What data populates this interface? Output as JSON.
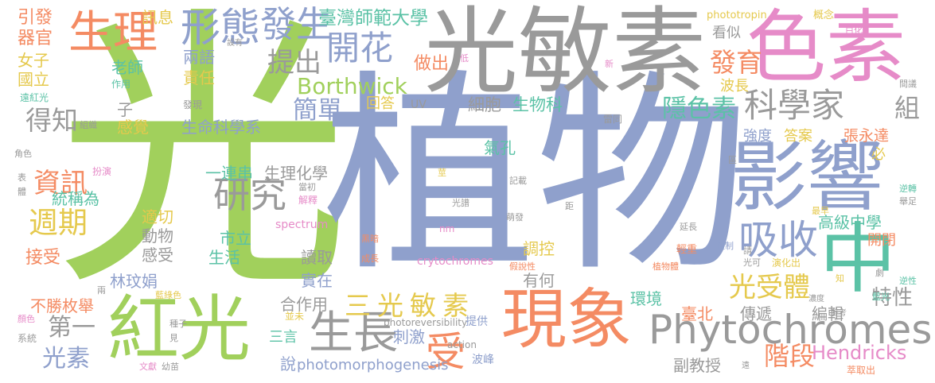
{
  "words": {
    "w000": {
      "text": "光",
      "color": "#a1d05c"
    },
    "w001": {
      "text": "植物",
      "color": "#8fa0cc"
    },
    "w002": {
      "text": "光敏素",
      "color": "#9a9a9a"
    },
    "w003": {
      "text": "色素",
      "color": "#e68bc8"
    },
    "w004": {
      "text": "影響",
      "color": "#8fa0cc"
    },
    "w005": {
      "text": "現象",
      "color": "#f48b63"
    },
    "w006": {
      "text": "紅光",
      "color": "#a1d05c"
    },
    "w007": {
      "text": "中",
      "color": "#5bc2a6"
    },
    "w008": {
      "text": "Phytochromes",
      "color": "#9a9a9a"
    },
    "w009": {
      "text": "生理",
      "color": "#f48b63"
    },
    "w010": {
      "text": "形態",
      "color": "#8fa0cc"
    },
    "w011": {
      "text": "發生",
      "color": "#8fa0cc"
    },
    "w012": {
      "text": "開花",
      "color": "#8fa0cc"
    },
    "w013": {
      "text": "科學家",
      "color": "#9a9a9a"
    },
    "w014": {
      "text": "組",
      "color": "#9a9a9a"
    },
    "w015": {
      "text": "吸收",
      "color": "#8fa0cc"
    },
    "w016": {
      "text": "研究",
      "color": "#9a9a9a"
    },
    "w017": {
      "text": "生長",
      "color": "#9a9a9a"
    },
    "w018": {
      "text": "受",
      "color": "#f48b63"
    },
    "w019": {
      "text": "Borthwick",
      "color": "#a1d05c"
    },
    "w020": {
      "text": "臺灣師範大學",
      "color": "#5bc2a6"
    },
    "w021": {
      "text": "提出",
      "color": "#9a9a9a"
    },
    "w022": {
      "text": "發育",
      "color": "#f48b63"
    },
    "w023": {
      "text": "簡單",
      "color": "#8fa0cc"
    },
    "w024": {
      "text": "隱色素",
      "color": "#5bc2a6"
    },
    "w025": {
      "text": "三光敏素",
      "color": "#e5c94d"
    },
    "w026": {
      "text": "光受體",
      "color": "#e5c94d"
    },
    "w027": {
      "text": "資訊",
      "color": "#f48b63"
    },
    "w028": {
      "text": "週期",
      "color": "#e5c94d"
    },
    "w029": {
      "text": "得知",
      "color": "#9a9a9a"
    },
    "w030": {
      "text": "第一",
      "color": "#9a9a9a"
    },
    "w031": {
      "text": "光素",
      "color": "#8fa0cc"
    },
    "w032": {
      "text": "階段",
      "color": "#f48b63"
    },
    "w033": {
      "text": "Hendricks",
      "color": "#e68bc8"
    },
    "w034": {
      "text": "特性",
      "color": "#9a9a9a"
    },
    "w035": {
      "text": "高級中學",
      "color": "#5bc2a6"
    },
    "w036": {
      "text": "做出",
      "color": "#f48b63"
    },
    "w037": {
      "text": "回答",
      "color": "#e5c94d"
    },
    "w038": {
      "text": "細胞",
      "color": "#9a9a9a"
    },
    "w039": {
      "text": "生物科",
      "color": "#5bc2a6"
    },
    "w040": {
      "text": "老師",
      "color": "#5bc2a6"
    },
    "w041": {
      "text": "兩語",
      "color": "#8fa0cc"
    },
    "w042": {
      "text": "責任",
      "color": "#e5c94d"
    },
    "w043": {
      "text": "訊息",
      "color": "#e5c94d"
    },
    "w044": {
      "text": "引發",
      "color": "#f48b63"
    },
    "w045": {
      "text": "器官",
      "color": "#f48b63"
    },
    "w046": {
      "text": "女子",
      "color": "#e5c94d"
    },
    "w047": {
      "text": "國立",
      "color": "#e5c94d"
    },
    "w048": {
      "text": "子",
      "color": "#9a9a9a"
    },
    "w049": {
      "text": "感覺",
      "color": "#e5c94d"
    },
    "w050": {
      "text": "生命科學系",
      "color": "#8fa0cc"
    },
    "w051": {
      "text": "氣孔",
      "color": "#5bc2a6"
    },
    "w052": {
      "text": "一連串",
      "color": "#5bc2a6"
    },
    "w053": {
      "text": "生理化學",
      "color": "#9a9a9a"
    },
    "w054": {
      "text": "統稱為",
      "color": "#5bc2a6"
    },
    "w055": {
      "text": "適切",
      "color": "#e5c94d"
    },
    "w056": {
      "text": "動物",
      "color": "#9a9a9a"
    },
    "w057": {
      "text": "感受",
      "color": "#9a9a9a"
    },
    "w058": {
      "text": "市立",
      "color": "#5bc2a6"
    },
    "w059": {
      "text": "生活",
      "color": "#5bc2a6"
    },
    "w060": {
      "text": "接受",
      "color": "#f48b63"
    },
    "w061": {
      "text": "讀取",
      "color": "#9a9a9a"
    },
    "w062": {
      "text": "調控",
      "color": "#e5c94d"
    },
    "w063": {
      "text": "實在",
      "color": "#8fa0cc"
    },
    "w064": {
      "text": "有何",
      "color": "#9a9a9a"
    },
    "w065": {
      "text": "林玟娟",
      "color": "#8fa0cc"
    },
    "w066": {
      "text": "不勝枚舉",
      "color": "#f48b63"
    },
    "w067": {
      "text": "合作用",
      "color": "#9a9a9a"
    },
    "w068": {
      "text": "三言",
      "color": "#5bc2a6"
    },
    "w069": {
      "text": "刺激",
      "color": "#8fa0cc"
    },
    "w070": {
      "text": "說",
      "color": "#8fa0cc"
    },
    "w071": {
      "text": "photomorphogenesis",
      "color": "#8fa0cc"
    },
    "w072": {
      "text": "環境",
      "color": "#5bc2a6"
    },
    "w073": {
      "text": "臺北",
      "color": "#f48b63"
    },
    "w074": {
      "text": "傳遞",
      "color": "#9a9a9a"
    },
    "w075": {
      "text": "編輯",
      "color": "#9a9a9a"
    },
    "w076": {
      "text": "副教授",
      "color": "#9a9a9a"
    },
    "w077": {
      "text": "看似",
      "color": "#9a9a9a"
    },
    "w078": {
      "text": "波長",
      "color": "#e5c94d"
    },
    "w079": {
      "text": "強度",
      "color": "#8fa0cc"
    },
    "w080": {
      "text": "答案",
      "color": "#e5c94d"
    },
    "w081": {
      "text": "張永達",
      "color": "#f48b63"
    },
    "w082": {
      "text": "必",
      "color": "#e5c94d"
    },
    "w083": {
      "text": "開閉",
      "color": "#f48b63"
    },
    "w084": {
      "text": "phototropin",
      "color": "#e5c94d"
    },
    "w085": {
      "text": "概念",
      "color": "#e5c94d"
    },
    "w086": {
      "text": "白化",
      "color": "#e68bc8"
    },
    "w087": {
      "text": "設有",
      "color": "#9a9a9a"
    },
    "w088": {
      "text": "作用",
      "color": "#5bc2a6"
    },
    "w089": {
      "text": "遠紅光",
      "color": "#5bc2a6"
    },
    "w090": {
      "text": "發現",
      "color": "#9a9a9a"
    },
    "w091": {
      "text": "組織",
      "color": "#9a9a9a"
    },
    "w092": {
      "text": "UV",
      "color": "#9a9a9a"
    },
    "w093": {
      "text": "低",
      "color": "#e68bc8"
    },
    "w094": {
      "text": "新",
      "color": "#e68bc8"
    },
    "w095": {
      "text": "雷同",
      "color": "#9a9a9a"
    },
    "w096": {
      "text": "區",
      "color": "#9a9a9a"
    },
    "w097": {
      "text": "角色",
      "color": "#9a9a9a"
    },
    "w098": {
      "text": "表",
      "color": "#9a9a9a"
    },
    "w099": {
      "text": "扮演",
      "color": "#e68bc8"
    },
    "w100": {
      "text": "體",
      "color": "#9a9a9a"
    },
    "w101": {
      "text": "當初",
      "color": "#9a9a9a"
    },
    "w102": {
      "text": "解釋",
      "color": "#e68bc8"
    },
    "w103": {
      "text": "莖",
      "color": "#e5c94d"
    },
    "w104": {
      "text": "記載",
      "color": "#9a9a9a"
    },
    "w105": {
      "text": "光譜",
      "color": "#9a9a9a"
    },
    "w106": {
      "text": "萌發",
      "color": "#9a9a9a"
    },
    "w107": {
      "text": "距",
      "color": "#9a9a9a"
    },
    "w108": {
      "text": "延長",
      "color": "#9a9a9a"
    },
    "w109": {
      "text": "最早",
      "color": "#e5c94d"
    },
    "w110": {
      "text": "逆轉",
      "color": "#5bc2a6"
    },
    "w111": {
      "text": "舉足",
      "color": "#9a9a9a"
    },
    "w112": {
      "text": "spectrum",
      "color": "#e68bc8"
    },
    "w113": {
      "text": "nm",
      "color": "#e68bc8"
    },
    "w114": {
      "text": "黑暗",
      "color": "#f48b63"
    },
    "w115": {
      "text": "成長",
      "color": "#f48b63"
    },
    "w116": {
      "text": "crytochromes",
      "color": "#e68bc8"
    },
    "w117": {
      "text": "假說性",
      "color": "#f48b63"
    },
    "w118": {
      "text": "植物體",
      "color": "#f48b63"
    },
    "w119": {
      "text": "輕重",
      "color": "#f48b63"
    },
    "w120": {
      "text": "控制",
      "color": "#8fa0cc"
    },
    "w121": {
      "text": "光可",
      "color": "#9a9a9a"
    },
    "w122": {
      "text": "請",
      "color": "#9a9a9a"
    },
    "w123": {
      "text": "演化出",
      "color": "#e5c94d"
    },
    "w124": {
      "text": "逆性",
      "color": "#5bc2a6"
    },
    "w125": {
      "text": "知",
      "color": "#e5c94d"
    },
    "w126": {
      "text": "劇",
      "color": "#9a9a9a"
    },
    "w127": {
      "text": "藍光",
      "color": "#5bc2a6"
    },
    "w128": {
      "text": "濃度",
      "color": "#9a9a9a"
    },
    "w129": {
      "text": "參考",
      "color": "#9a9a9a"
    },
    "w130": {
      "text": "兩",
      "color": "#9a9a9a"
    },
    "w131": {
      "text": "藍綠色",
      "color": "#e5c94d"
    },
    "w132": {
      "text": "顏色",
      "color": "#e68bc8"
    },
    "w133": {
      "text": "種子",
      "color": "#9a9a9a"
    },
    "w134": {
      "text": "見",
      "color": "#9a9a9a"
    },
    "w135": {
      "text": "系統",
      "color": "#9a9a9a"
    },
    "w136": {
      "text": "文獻",
      "color": "#e68bc8"
    },
    "w137": {
      "text": "幼苗",
      "color": "#9a9a9a"
    },
    "w138": {
      "text": "並未",
      "color": "#e5c94d"
    },
    "w139": {
      "text": "photoreversibility",
      "color": "#9a9a9a"
    },
    "w140": {
      "text": "提供",
      "color": "#8fa0cc"
    },
    "w141": {
      "text": "action",
      "color": "#9a9a9a"
    },
    "w142": {
      "text": "波峰",
      "color": "#8fa0cc"
    },
    "w143": {
      "text": "遠",
      "color": "#9a9a9a"
    },
    "w144": {
      "text": "萃取出",
      "color": "#f48b63"
    },
    "w145": {
      "text": "間議",
      "color": "#9a9a9a"
    }
  }
}
